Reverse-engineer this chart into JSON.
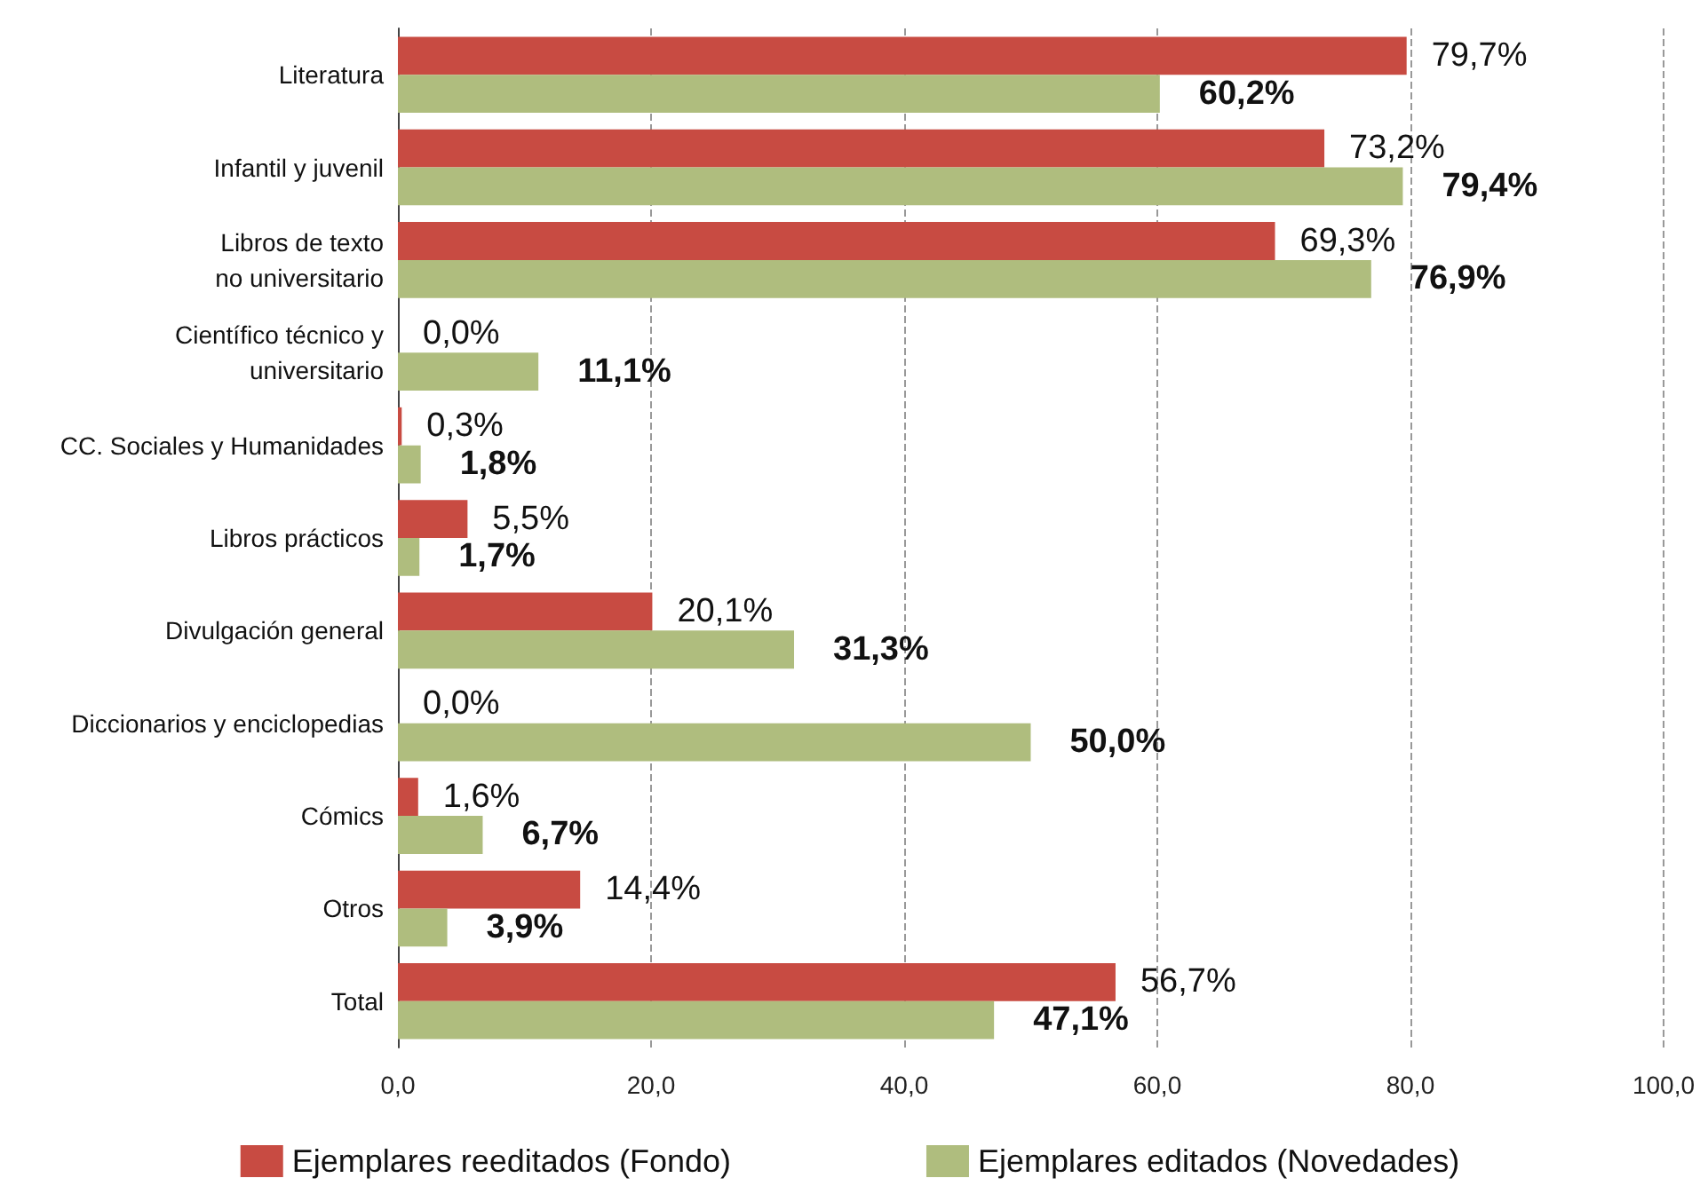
{
  "chart_data": {
    "type": "bar",
    "orientation": "horizontal",
    "categories": [
      "Literatura",
      "Infantil y juvenil",
      "Libros de texto\nno universitario",
      "Científico técnico y\nuniversitario",
      "CC. Sociales y Humanidades",
      "Libros prácticos",
      "Divulgación general",
      "Diccionarios y enciclopedias",
      "Cómics",
      "Otros",
      "Total"
    ],
    "series": [
      {
        "name": "Ejemplares reeditados (Fondo)",
        "color": "#c84b42",
        "values": [
          79.7,
          73.2,
          69.3,
          0.0,
          0.3,
          5.5,
          20.1,
          0.0,
          1.6,
          14.4,
          56.7
        ],
        "value_labels": [
          "79,7%",
          "73,2%",
          "69,3%",
          "0,0%",
          "0,3%",
          "5,5%",
          "20,1%",
          "0,0%",
          "1,6%",
          "14,4%",
          "56,7%"
        ]
      },
      {
        "name": "Ejemplares editados (Novedades)",
        "color": "#afbd7e",
        "values": [
          60.2,
          79.4,
          76.9,
          11.1,
          1.8,
          1.7,
          31.3,
          50.0,
          6.7,
          3.9,
          47.1
        ],
        "value_labels": [
          "60,2%",
          "79,4%",
          "76,9%",
          "11,1%",
          "1,8%",
          "1,7%",
          "31,3%",
          "50,0%",
          "6,7%",
          "3,9%",
          "47,1%"
        ]
      }
    ],
    "xlim": [
      0,
      100
    ],
    "xticks": [
      {
        "value": 0,
        "label": "0,0"
      },
      {
        "value": 20,
        "label": "20,0"
      },
      {
        "value": 40,
        "label": "40,0"
      },
      {
        "value": 60,
        "label": "60,0"
      },
      {
        "value": 80,
        "label": "80,0"
      },
      {
        "value": 100,
        "label": "100,0"
      }
    ],
    "grid": "x",
    "legend": "bottom"
  }
}
